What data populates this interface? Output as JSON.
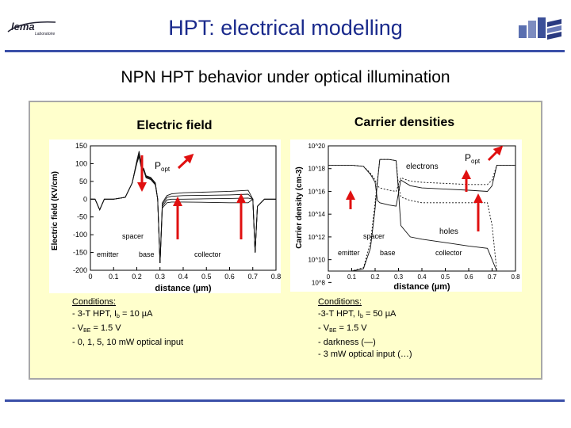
{
  "header": {
    "title": "HPT: electrical modelling",
    "logo_left_text": "lema",
    "logo_left_sub": "Laboratoire"
  },
  "subtitle": "NPN HPT behavior under optical illumination",
  "left_panel": {
    "heading": "Electric field",
    "popt_label": "P",
    "popt_sub": "opt",
    "conditions_heading": "Conditions:",
    "cond_line1_prefix": "- 3-T HPT, I",
    "cond_line1_sub": "b",
    "cond_line1_suffix": " = 10 µA",
    "cond_line2_prefix": "- V",
    "cond_line2_sub": "BE",
    "cond_line2_suffix": " = 1.5 V",
    "cond_line3": "- 0, 1, 5, 10 mW optical input"
  },
  "right_panel": {
    "heading": "Carrier densities",
    "popt_label": "P",
    "popt_sub": "opt",
    "conditions_heading": "Conditions:",
    "cond_line1_prefix": "-3-T HPT, I",
    "cond_line1_sub": "b",
    "cond_line1_suffix": " = 50 µA",
    "cond_line2_prefix": "- V",
    "cond_line2_sub": "BE",
    "cond_line2_suffix": " = 1.5 V",
    "cond_line3": "- darkness (—)",
    "cond_line4": "- 3 mW optical input (…)"
  },
  "chart_data": [
    {
      "type": "line",
      "title": "Electric field",
      "xlabel": "distance (µm)",
      "ylabel": "Electric field (KV/cm)",
      "xlim": [
        0,
        0.8
      ],
      "ylim": [
        -200,
        150
      ],
      "x_ticks": [
        "0",
        "0.1",
        "0.2",
        "0.3",
        "0.4",
        "0.5",
        "0.6",
        "0.7",
        "0.8"
      ],
      "y_ticks": [
        "150",
        "100",
        "50",
        "0",
        "-50",
        "-100",
        "-150",
        "-200"
      ],
      "region_labels": [
        "spacer",
        "emitter",
        "base",
        "collector"
      ],
      "series": [
        {
          "name": "0 mW",
          "x": [
            0,
            0.02,
            0.04,
            0.06,
            0.1,
            0.15,
            0.18,
            0.2,
            0.21,
            0.22,
            0.23,
            0.24,
            0.26,
            0.28,
            0.29,
            0.3,
            0.31,
            0.33,
            0.35,
            0.4,
            0.5,
            0.6,
            0.68,
            0.7,
            0.71,
            0.72,
            0.75,
            0.8
          ],
          "y": [
            0,
            0,
            -30,
            0,
            0,
            5,
            45,
            100,
            120,
            85,
            80,
            60,
            55,
            40,
            0,
            -180,
            -10,
            10,
            15,
            18,
            20,
            22,
            25,
            0,
            -150,
            -20,
            0,
            0
          ]
        },
        {
          "name": "1 mW",
          "x": [
            0,
            0.02,
            0.04,
            0.06,
            0.1,
            0.15,
            0.18,
            0.2,
            0.21,
            0.22,
            0.23,
            0.24,
            0.26,
            0.28,
            0.29,
            0.3,
            0.31,
            0.33,
            0.35,
            0.4,
            0.5,
            0.6,
            0.68,
            0.7,
            0.71,
            0.72,
            0.75,
            0.8
          ],
          "y": [
            0,
            0,
            -30,
            0,
            0,
            5,
            45,
            102,
            125,
            88,
            82,
            62,
            57,
            42,
            0,
            -180,
            -15,
            5,
            8,
            10,
            11,
            12,
            14,
            0,
            -150,
            -20,
            0,
            0
          ]
        },
        {
          "name": "5 mW",
          "x": [
            0,
            0.02,
            0.04,
            0.06,
            0.1,
            0.15,
            0.18,
            0.2,
            0.21,
            0.22,
            0.23,
            0.24,
            0.26,
            0.28,
            0.29,
            0.3,
            0.31,
            0.33,
            0.35,
            0.4,
            0.5,
            0.6,
            0.68,
            0.7,
            0.71,
            0.72,
            0.75,
            0.8
          ],
          "y": [
            0,
            0,
            -30,
            0,
            0,
            5,
            45,
            105,
            130,
            90,
            84,
            64,
            59,
            44,
            0,
            -180,
            -20,
            -2,
            0,
            0,
            1,
            2,
            3,
            0,
            -150,
            -20,
            0,
            0
          ]
        },
        {
          "name": "10 mW",
          "x": [
            0,
            0.02,
            0.04,
            0.06,
            0.1,
            0.15,
            0.18,
            0.2,
            0.21,
            0.22,
            0.23,
            0.24,
            0.26,
            0.28,
            0.29,
            0.3,
            0.31,
            0.33,
            0.35,
            0.4,
            0.5,
            0.6,
            0.68,
            0.7,
            0.71,
            0.72,
            0.75,
            0.8
          ],
          "y": [
            0,
            0,
            -30,
            0,
            0,
            5,
            45,
            108,
            135,
            92,
            86,
            66,
            61,
            46,
            0,
            -180,
            -25,
            -10,
            -8,
            -8,
            -9,
            -10,
            -10,
            0,
            -150,
            -20,
            0,
            0
          ]
        }
      ]
    },
    {
      "type": "line",
      "title": "Carrier densities",
      "xlabel": "distance (µm)",
      "ylabel": "Carrier density (cm-3)",
      "xlim": [
        0,
        0.8
      ],
      "ylim_log10": [
        9,
        20
      ],
      "x_ticks": [
        "0",
        "0.1",
        "0.2",
        "0.3",
        "0.4",
        "0.5",
        "0.6",
        "0.7",
        "0.8"
      ],
      "y_ticks": [
        "10^20",
        "10^18",
        "10^16",
        "10^14",
        "10^12",
        "10^10",
        "10^8"
      ],
      "region_labels": [
        "electrons",
        "holes",
        "spacer",
        "emitter",
        "base",
        "collector"
      ],
      "series": [
        {
          "name": "electrons (darkness)",
          "x": [
            0,
            0.05,
            0.1,
            0.15,
            0.18,
            0.2,
            0.21,
            0.22,
            0.26,
            0.29,
            0.31,
            0.35,
            0.4,
            0.5,
            0.6,
            0.68,
            0.7,
            0.72,
            0.8
          ],
          "log10_y": [
            18.3,
            18.3,
            18.3,
            18.2,
            17.5,
            16.8,
            15.2,
            15.0,
            14.8,
            14.7,
            17.0,
            16.5,
            16.3,
            16.2,
            16.1,
            16.0,
            16.5,
            18.3,
            18.3
          ]
        },
        {
          "name": "electrons (3 mW)",
          "x": [
            0,
            0.05,
            0.1,
            0.15,
            0.18,
            0.2,
            0.21,
            0.22,
            0.26,
            0.29,
            0.31,
            0.35,
            0.4,
            0.5,
            0.6,
            0.68,
            0.7,
            0.72,
            0.8
          ],
          "log10_y": [
            18.3,
            18.3,
            18.3,
            18.2,
            17.6,
            17.0,
            16.5,
            16.3,
            16.1,
            16.0,
            17.2,
            16.9,
            16.8,
            16.7,
            16.6,
            16.6,
            17.0,
            18.3,
            18.3
          ]
        },
        {
          "name": "holes (darkness)",
          "x": [
            0,
            0.05,
            0.1,
            0.15,
            0.18,
            0.2,
            0.21,
            0.22,
            0.26,
            0.29,
            0.3,
            0.31,
            0.35,
            0.4,
            0.5,
            0.6,
            0.68,
            0.7,
            0.72,
            0.8
          ],
          "log10_y": [
            9.0,
            9.0,
            9.0,
            9.2,
            11.0,
            14.5,
            16.8,
            18.8,
            18.8,
            18.7,
            16.0,
            13.0,
            12.0,
            11.8,
            11.5,
            11.2,
            11.0,
            10.0,
            9.0,
            9.0
          ]
        },
        {
          "name": "holes (3 mW)",
          "x": [
            0,
            0.05,
            0.1,
            0.15,
            0.18,
            0.2,
            0.21,
            0.22,
            0.26,
            0.29,
            0.3,
            0.31,
            0.35,
            0.4,
            0.5,
            0.6,
            0.68,
            0.7,
            0.72,
            0.8
          ],
          "log10_y": [
            9.0,
            9.0,
            9.0,
            9.3,
            11.5,
            15.0,
            17.0,
            18.8,
            18.8,
            18.7,
            16.5,
            15.5,
            15.2,
            15.0,
            15.0,
            15.0,
            15.0,
            13.0,
            9.0,
            9.0
          ]
        }
      ]
    }
  ],
  "colors": {
    "title": "#1a2a8c",
    "rule": "#3a4fa8",
    "panel_bg": "#ffffcc",
    "arrow": "#e01010",
    "curve": "#111111"
  }
}
